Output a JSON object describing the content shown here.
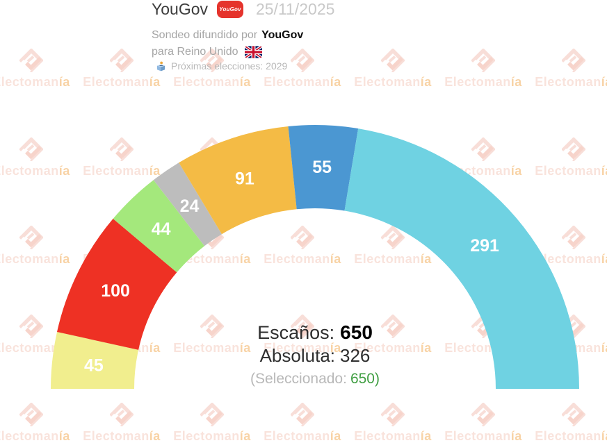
{
  "header": {
    "pollster": "YouGov",
    "badge_text": "YouGov",
    "date": "25/11/2025",
    "published_by_label": "Sondeo difundido por",
    "published_by": "YouGov",
    "region_label": "para Reino Unido",
    "flag_icon": "uk-flag",
    "next_election_label": "Próximas elecciones: 2029"
  },
  "chart_data": {
    "type": "hemicycle-donut",
    "title": "YouGov 25/11/2025 — Reino Unido",
    "total_seats": 650,
    "majority": 326,
    "legend_position": "none",
    "series": [
      {
        "value": 45,
        "color": "#f1ee8e"
      },
      {
        "value": 100,
        "color": "#ee3124"
      },
      {
        "value": 44,
        "color": "#a4e87c"
      },
      {
        "value": 24,
        "color": "#bdbdbd"
      },
      {
        "value": 91,
        "color": "#f4bb45"
      },
      {
        "value": 55,
        "color": "#4b97d2"
      },
      {
        "value": 291,
        "color": "#6fd2e2"
      }
    ],
    "label_color": "#ffffff"
  },
  "center": {
    "seats_label": "Escaños:",
    "seats_value": "650",
    "majority_label": "Absoluta:",
    "majority_value": "326",
    "selected_prefix": "(Seleccionado:",
    "selected_value": "650",
    "selected_suffix": ")"
  },
  "watermark": {
    "text": "Electomanía",
    "text_color": "#f9e3dc",
    "accent_color": "#f8d3a6",
    "logo_color": "#f8ded8",
    "logo_check_color": "#f7d4cb"
  }
}
